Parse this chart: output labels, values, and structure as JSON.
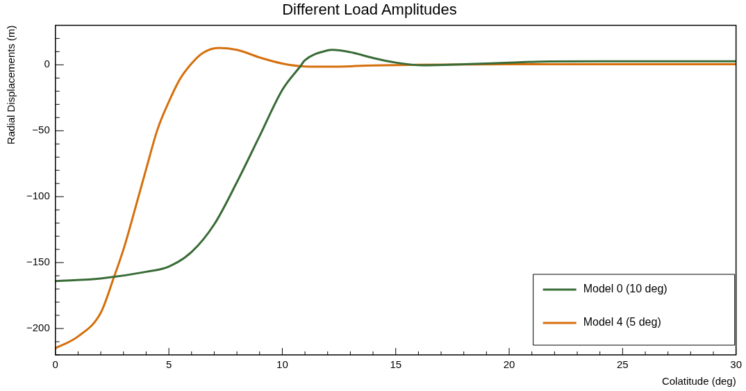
{
  "chart_data": {
    "type": "line",
    "title": "Different Load Amplitudes",
    "xlabel": "Colatitude (deg)",
    "ylabel": "Radial Displacements (m)",
    "xlim": [
      0,
      30
    ],
    "ylim": [
      -220,
      30
    ],
    "xticks": [
      0,
      {
        "value": 1,
        "label": null
      },
      {
        "value": 2,
        "label": null
      },
      {
        "value": 3,
        "label": null
      },
      {
        "value": 4,
        "label": null
      },
      5,
      {
        "value": 6,
        "label": null
      },
      {
        "value": 7,
        "label": null
      },
      {
        "value": 8,
        "label": null
      },
      {
        "value": 9,
        "label": null
      },
      10,
      {
        "value": 11,
        "label": null
      },
      {
        "value": 12,
        "label": null
      },
      {
        "value": 13,
        "label": null
      },
      {
        "value": 14,
        "label": null
      },
      15,
      {
        "value": 16,
        "label": null
      },
      {
        "value": 17,
        "label": null
      },
      {
        "value": 18,
        "label": null
      },
      {
        "value": 19,
        "label": null
      },
      20,
      {
        "value": 21,
        "label": null
      },
      {
        "value": 22,
        "label": null
      },
      {
        "value": 23,
        "label": null
      },
      {
        "value": 24,
        "label": null
      },
      25,
      {
        "value": 26,
        "label": null
      },
      {
        "value": 27,
        "label": null
      },
      {
        "value": 28,
        "label": null
      },
      {
        "value": 29,
        "label": null
      },
      30
    ],
    "yticks": [
      {
        "value": -220,
        "label": null
      },
      {
        "value": -200,
        "label": "−200"
      },
      {
        "value": -190,
        "label": null
      },
      {
        "value": -180,
        "label": null
      },
      {
        "value": -170,
        "label": null
      },
      {
        "value": -160,
        "label": null
      },
      {
        "value": -150,
        "label": "−150"
      },
      {
        "value": -140,
        "label": null
      },
      {
        "value": -130,
        "label": null
      },
      {
        "value": -120,
        "label": null
      },
      {
        "value": -110,
        "label": null
      },
      {
        "value": -100,
        "label": "−100"
      },
      {
        "value": -90,
        "label": null
      },
      {
        "value": -80,
        "label": null
      },
      {
        "value": -70,
        "label": null
      },
      {
        "value": -60,
        "label": null
      },
      {
        "value": -50,
        "label": "−50"
      },
      {
        "value": -40,
        "label": null
      },
      {
        "value": -30,
        "label": null
      },
      {
        "value": -20,
        "label": null
      },
      {
        "value": -10,
        "label": null
      },
      0,
      {
        "value": 10,
        "label": null
      },
      {
        "value": 20,
        "label": null
      },
      {
        "value": -210,
        "label": null
      }
    ],
    "legend": "bottom right",
    "marker": "none",
    "line_style": "solid",
    "series": [
      {
        "name": "Model 0 (10 deg)",
        "color": "#386b36",
        "x": [
          0,
          2,
          4,
          5,
          6,
          7,
          8,
          9,
          10,
          10.8,
          11,
          12,
          12.2,
          13,
          14,
          15,
          16.2,
          18,
          20,
          21.8,
          25,
          30
        ],
        "values": [
          -164,
          -162,
          -157,
          -153,
          -142,
          -121,
          -89,
          -54,
          -19,
          -1,
          3.5,
          11,
          11.4,
          9.6,
          5.2,
          1.7,
          -0.4,
          0.4,
          1.6,
          2.6,
          2.7,
          2.7
        ]
      },
      {
        "name": "Model 4 (5 deg)",
        "color": "#d56f0b",
        "x": [
          0,
          1,
          2,
          2.58,
          3,
          3.5,
          4,
          4.5,
          5,
          5.5,
          6,
          6.5,
          7.2,
          8,
          9,
          10,
          11,
          12,
          14,
          16,
          20,
          25,
          30
        ],
        "values": [
          -215,
          -206,
          -188,
          -161,
          -140,
          -110,
          -79,
          -49,
          -28,
          -10.5,
          1,
          9,
          12.8,
          11.4,
          5.6,
          1,
          -1.2,
          -1.4,
          -0.5,
          0,
          0.4,
          0.4,
          0.4
        ]
      }
    ]
  }
}
